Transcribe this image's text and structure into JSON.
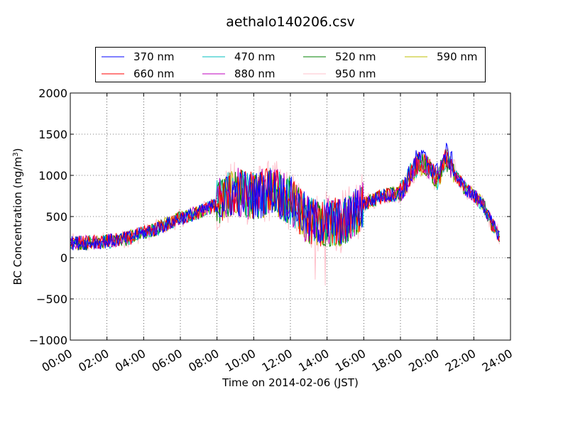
{
  "chart_data": {
    "type": "line",
    "title": "aethalo140206.csv",
    "xlabel": "Time on 2014-02-06 (JST)",
    "ylabel": "BC Concentration (ng/m",
    "ylabel_sup": "3",
    "ylabel_end": ")",
    "xlim": [
      "00:00",
      "24:00"
    ],
    "ylim": [
      -1000,
      2000
    ],
    "x_ticks": [
      "00:00",
      "02:00",
      "04:00",
      "06:00",
      "08:00",
      "10:00",
      "12:00",
      "14:00",
      "16:00",
      "18:00",
      "20:00",
      "22:00",
      "24:00"
    ],
    "y_ticks": [
      -1000,
      -500,
      0,
      500,
      1000,
      1500,
      2000
    ],
    "grid": true,
    "legend_position": "top",
    "series": [
      {
        "name": "370 nm",
        "color": "#0000ff"
      },
      {
        "name": "470 nm",
        "color": "#00bfbf"
      },
      {
        "name": "520 nm",
        "color": "#008000"
      },
      {
        "name": "590 nm",
        "color": "#bfbf00"
      },
      {
        "name": "660 nm",
        "color": "#ff0000"
      },
      {
        "name": "880 nm",
        "color": "#bf00bf"
      },
      {
        "name": "950 nm",
        "color": "#ffc0cb"
      }
    ],
    "base_profile": {
      "time": [
        "00:00",
        "01:00",
        "02:00",
        "03:00",
        "04:00",
        "05:00",
        "06:00",
        "07:00",
        "08:00",
        "09:00",
        "10:00",
        "11:00",
        "12:00",
        "13:00",
        "14:00",
        "15:00",
        "16:00",
        "17:00",
        "18:00",
        "18:30",
        "19:00",
        "19:30",
        "20:00",
        "20:30",
        "21:00",
        "21:30",
        "22:00",
        "22:30",
        "23:00",
        "23:30"
      ],
      "value": [
        180,
        180,
        200,
        230,
        300,
        380,
        480,
        550,
        650,
        800,
        750,
        820,
        700,
        450,
        420,
        450,
        650,
        750,
        780,
        1000,
        1150,
        1100,
        950,
        1200,
        1000,
        850,
        750,
        650,
        400,
        250
      ]
    }
  }
}
